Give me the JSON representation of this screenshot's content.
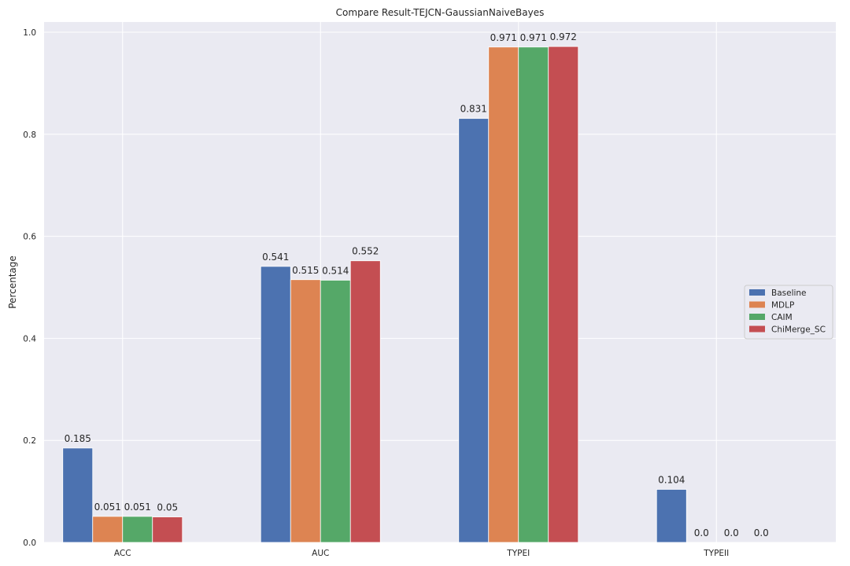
{
  "chart_data": {
    "type": "bar",
    "title": "Compare Result-TEJCN-GaussianNaiveBayes",
    "xlabel": "",
    "ylabel": "Percentage",
    "categories": [
      "ACC",
      "AUC",
      "TYPEI",
      "TYPEII"
    ],
    "series": [
      {
        "name": "Baseline",
        "values": [
          0.185,
          0.541,
          0.831,
          0.104
        ],
        "labels": [
          "0.185",
          "0.541",
          "0.831",
          "0.104"
        ],
        "color": "#4c72b0"
      },
      {
        "name": "MDLP",
        "values": [
          0.051,
          0.515,
          0.971,
          0.0
        ],
        "labels": [
          "0.051",
          "0.515",
          "0.971",
          "0.0"
        ],
        "color": "#dd8452"
      },
      {
        "name": "CAIM",
        "values": [
          0.051,
          0.514,
          0.971,
          0.0
        ],
        "labels": [
          "0.051",
          "0.514",
          "0.971",
          "0.0"
        ],
        "color": "#55a868"
      },
      {
        "name": "ChiMerge_SC",
        "values": [
          0.05,
          0.552,
          0.972,
          0.0
        ],
        "labels": [
          "0.05",
          "0.552",
          "0.972",
          "0.0"
        ],
        "color": "#c44e52"
      }
    ],
    "yticks": [
      "0.0",
      "0.2",
      "0.4",
      "0.6",
      "0.8",
      "1.0"
    ],
    "ylim": [
      0,
      1.02
    ],
    "grid": true,
    "legend_position": "center-right",
    "background_color": "#eaeaf2",
    "grid_color": "#ffffff"
  }
}
